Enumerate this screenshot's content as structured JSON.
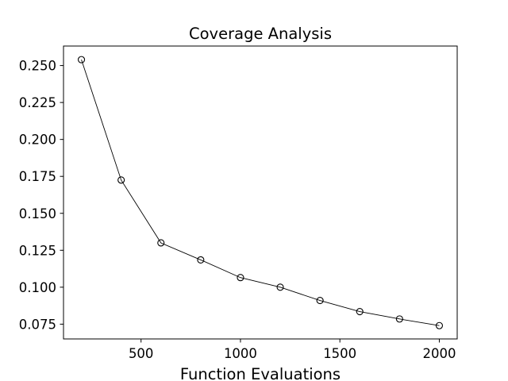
{
  "chart_data": {
    "type": "line",
    "title": "Coverage Analysis",
    "xlabel": "Function Evaluations",
    "ylabel": "",
    "x": [
      200,
      400,
      600,
      800,
      1000,
      1200,
      1400,
      1600,
      1800,
      2000
    ],
    "series": [
      {
        "values": [
          0.254,
          0.1725,
          0.13,
          0.1185,
          0.1065,
          0.1,
          0.091,
          0.0835,
          0.0785,
          0.074
        ],
        "color": "#000000",
        "marker": "open-circle"
      }
    ],
    "xlim": [
      110,
      2090
    ],
    "ylim": [
      0.065,
      0.2632
    ],
    "xticks": [
      500,
      1000,
      1500,
      2000
    ],
    "xtick_labels": [
      "500",
      "1000",
      "1500",
      "2000"
    ],
    "yticks": [
      0.075,
      0.1,
      0.125,
      0.15,
      0.175,
      0.2,
      0.225,
      0.25
    ],
    "ytick_labels": [
      "0.075",
      "0.100",
      "0.125",
      "0.150",
      "0.175",
      "0.200",
      "0.225",
      "0.250"
    ],
    "grid": false,
    "legend": "none"
  }
}
